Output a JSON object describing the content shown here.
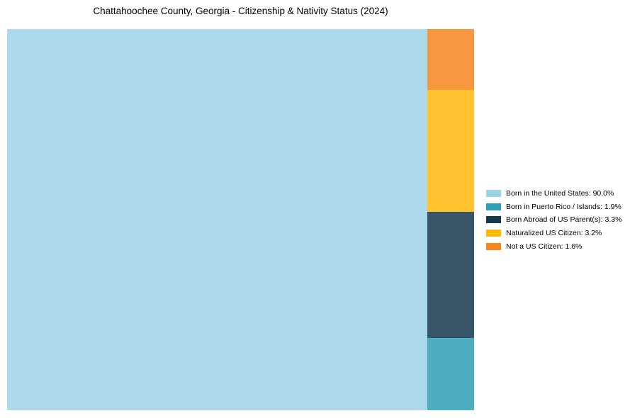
{
  "title": "Chattahoochee County, Georgia - Citizenship & Nativity Status (2024)",
  "chart_data": {
    "type": "treemap",
    "title": "Chattahoochee County, Georgia - Citizenship & Nativity Status (2024)",
    "unit": "percent",
    "series": [
      {
        "name": "Born in the United States",
        "value": 90.0,
        "color": "#9DD1E8",
        "legend_label": "Born in the United States: 90.0%"
      },
      {
        "name": "Born in Puerto Rico / Islands",
        "value": 1.9,
        "color": "#2E9FB8",
        "legend_label": "Born in Puerto Rico / Islands: 1.9%"
      },
      {
        "name": "Born Abroad of US Parent(s)",
        "value": 3.3,
        "color": "#153750",
        "legend_label": "Born Abroad of US Parent(s): 3.3%"
      },
      {
        "name": "Naturalized US Citizen",
        "value": 3.2,
        "color": "#FEB80A",
        "legend_label": "Naturalized US Citizen: 3.2%"
      },
      {
        "name": "Not a US Citizen",
        "value": 1.6,
        "color": "#F5861F",
        "legend_label": "Not a US Citizen: 1.6%"
      }
    ],
    "layout": {
      "main_block_index": 0,
      "right_column_order_top_to_bottom": [
        4,
        3,
        2,
        1
      ],
      "block_fill_alpha": 0.85,
      "legend_position": "right-center",
      "grid": false,
      "axes": false
    }
  }
}
